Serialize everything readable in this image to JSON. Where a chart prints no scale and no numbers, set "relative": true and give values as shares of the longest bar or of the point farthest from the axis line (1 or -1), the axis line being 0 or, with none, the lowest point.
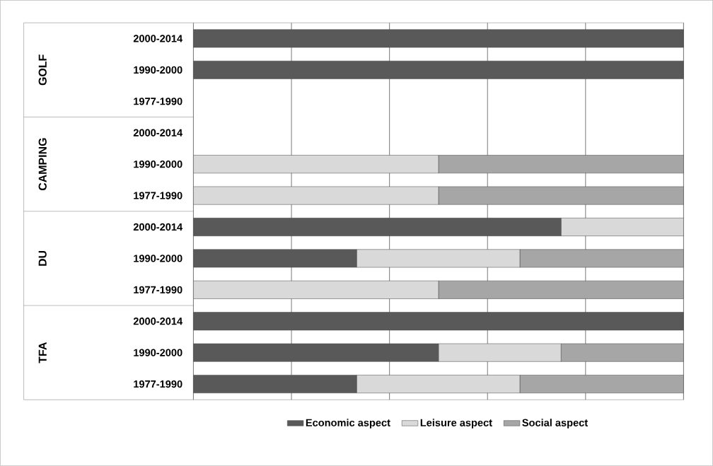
{
  "chart_data": {
    "type": "bar",
    "orientation": "horizontal",
    "stacked": true,
    "relative": true,
    "grid": "x",
    "legend": "bottom",
    "tick_labels": "y",
    "categories": [
      "2000-2014",
      "1990-2000",
      "1977-1990",
      "2000-2014",
      "1990-2000",
      "1977-1990",
      "2000-2014",
      "1990-2000",
      "1977-1990",
      "2000-2014",
      "1990-2000",
      "1977-1990"
    ],
    "annotations": [
      "GOLF",
      "CAMPING",
      "DU",
      "TFA"
    ],
    "series": [
      {
        "name": "Economic aspect",
        "color": "#595959",
        "values": [
          1,
          1,
          0,
          0,
          0,
          0,
          0.75,
          0.333,
          0,
          1,
          0.5,
          0.333
        ]
      },
      {
        "name": "Leisure aspect",
        "color": "#d9d9d9",
        "values": [
          0,
          0,
          0,
          0,
          0.5,
          0.5,
          0.25,
          0.333,
          0.5,
          0,
          0.25,
          0.333
        ]
      },
      {
        "name": "Social aspect",
        "color": "#a6a6a6",
        "values": [
          0,
          0,
          0,
          0,
          0.5,
          0.5,
          0,
          0.334,
          0.5,
          0,
          0.25,
          0.334
        ]
      }
    ]
  }
}
